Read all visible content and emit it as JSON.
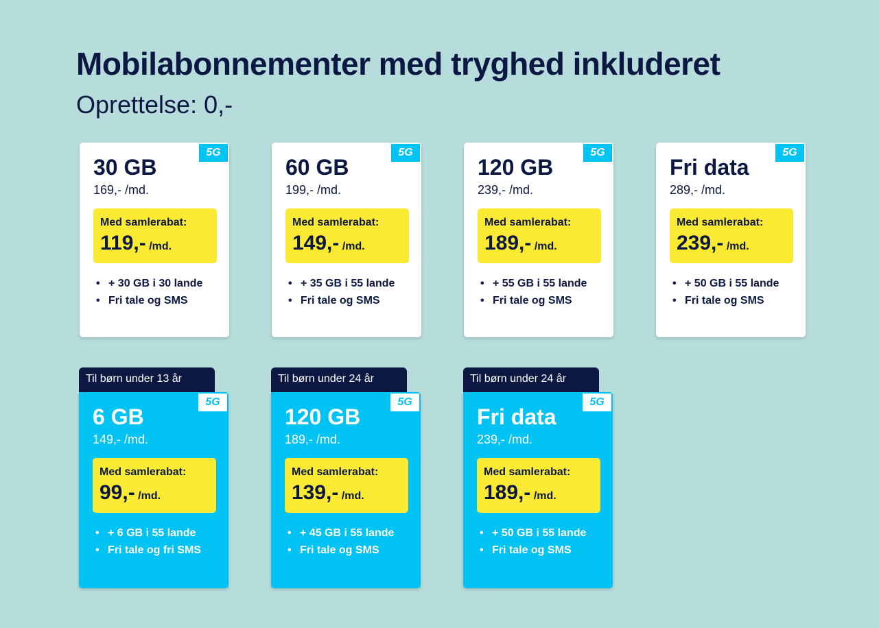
{
  "page": {
    "title": "Mobilabonnementer med tryghed inkluderet",
    "subtitle": "Oprettelse: 0,-"
  },
  "colors": {
    "background": "#b7dcdc",
    "navy": "#0c1742",
    "cyan": "#00c2f3",
    "yellow": "#fbea34",
    "white": "#ffffff"
  },
  "badge": "5G",
  "promo_label": "Med samlerabat:",
  "promo_unit": "/md.",
  "bullet": "•",
  "plans": [
    {
      "data": "30 GB",
      "price": "169,- /md.",
      "discount": "119,-",
      "features": [
        "+ 30 GB i 30 lande",
        "Fri tale og SMS"
      ]
    },
    {
      "data": "60 GB",
      "price": "199,- /md.",
      "discount": "149,-",
      "features": [
        "+ 35 GB i 55 lande",
        "Fri tale og SMS"
      ]
    },
    {
      "data": "120 GB",
      "price": "239,- /md.",
      "discount": "189,-",
      "features": [
        "+ 55 GB i 55 lande",
        "Fri tale og SMS"
      ]
    },
    {
      "data": "Fri data",
      "price": "289,- /md.",
      "discount": "239,-",
      "features": [
        "+ 50 GB i 55 lande",
        "Fri tale og SMS"
      ]
    }
  ],
  "youth_plans": [
    {
      "tag": "Til børn under 13 år",
      "data": "6 GB",
      "price": "149,- /md.",
      "discount": "99,-",
      "features": [
        "+ 6 GB i 55 lande",
        "Fri tale og fri SMS"
      ]
    },
    {
      "tag": "Til børn under 24 år",
      "data": "120 GB",
      "price": "189,- /md.",
      "discount": "139,-",
      "features": [
        "+ 45 GB i 55 lande",
        "Fri tale og SMS"
      ]
    },
    {
      "tag": "Til børn under 24 år",
      "data": "Fri data",
      "price": "239,- /md.",
      "discount": "189,-",
      "features": [
        "+ 50 GB i 55 lande",
        "Fri tale og SMS"
      ]
    }
  ]
}
